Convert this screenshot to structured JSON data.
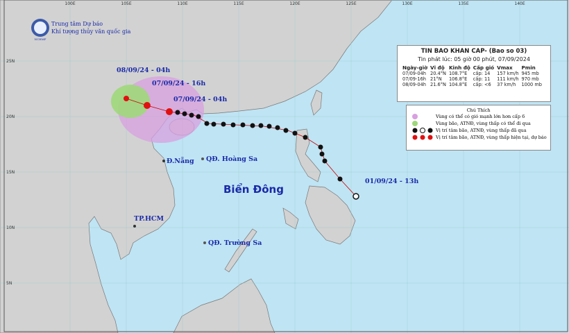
{
  "header": {
    "agency": "Trung tâm Dự báo",
    "agency_sub": "Khí tượng thủy văn quốc gia",
    "logo_text": "NCHMF"
  },
  "lon_labels": [
    "100E",
    "105E",
    "110E",
    "115E",
    "120E",
    "125E",
    "130E",
    "135E",
    "140E"
  ],
  "lat_labels": [
    "25N",
    "20N",
    "15N",
    "10N",
    "5N"
  ],
  "info_box": {
    "title": "TIN BAO KHAN CAP- (Bao so 03)",
    "issued": "Tin phát lúc: 05 giờ 00 phút, 07/09/2024",
    "columns": [
      "Ngày-giờ",
      "Vĩ độ",
      "Kinh độ",
      "Cấp gió",
      "Vmax",
      "Pmin"
    ],
    "rows": [
      [
        "07/09-04h",
        "20.4°N",
        "108.7°E",
        "cấp: 14",
        "157 km/h",
        "945 mb"
      ],
      [
        "07/09-16h",
        "21°N",
        "106.8°E",
        "cấp: 11",
        "111 km/h",
        "970 mb"
      ],
      [
        "08/09-04h",
        "21.6°N",
        "104.8°E",
        "cấp: <6",
        "37 km/h",
        "1000 mb"
      ]
    ]
  },
  "legend": {
    "title": "Chú Thích",
    "items": [
      "Vùng có thể có gió mạnh lớn hơn cấp 6",
      "Vùng bão, ATNĐ, vùng thấp có thể đi qua",
      "Vị trí tâm bão, ATNĐ, vùng thấp đã qua",
      "Vị trí tâm bão, ATNĐ, vùng thấp hiện tại, dự báo"
    ]
  },
  "map_labels": {
    "time_1": "08/09/24 - 04h",
    "time_2": "07/09/24 - 16h",
    "time_3": "07/09/24 - 04h",
    "time_4": "01/09/24 - 13h",
    "sea": "Biển Đông",
    "danang": "Đ.Nẵng",
    "hoangsa": "QĐ. Hoàng Sa",
    "hcm": "TP.HCM",
    "truongsa": "QĐ. Trường Sa"
  }
}
